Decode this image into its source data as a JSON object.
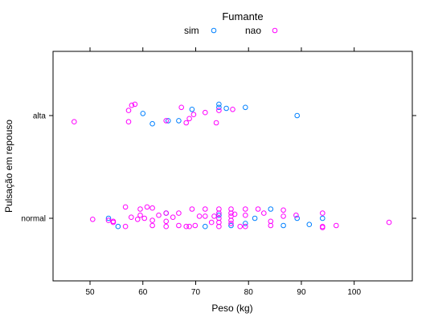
{
  "chart_data": {
    "type": "scatter",
    "xlabel": "Peso (kg)",
    "ylabel": "Pulsação em repouso",
    "xlim": [
      43,
      111
    ],
    "x_ticks": [
      50,
      60,
      70,
      80,
      90,
      100
    ],
    "categories": [
      "normal",
      "alta"
    ],
    "grid": false,
    "legend": {
      "title": "Fumante",
      "placement": "top",
      "entries": [
        "sim",
        "nao"
      ]
    },
    "series": [
      {
        "name": "sim",
        "color": "#0080ff",
        "points": [
          {
            "x": 60.0,
            "y": "alta",
            "j": 0.02
          },
          {
            "x": 61.8,
            "y": "alta",
            "j": -0.08
          },
          {
            "x": 64.8,
            "y": "alta",
            "j": -0.05
          },
          {
            "x": 66.8,
            "y": "alta",
            "j": -0.05
          },
          {
            "x": 69.3,
            "y": "alta",
            "j": 0.06
          },
          {
            "x": 74.4,
            "y": "alta",
            "j": 0.11
          },
          {
            "x": 74.4,
            "y": "alta",
            "j": 0.08
          },
          {
            "x": 75.8,
            "y": "alta",
            "j": 0.07
          },
          {
            "x": 79.4,
            "y": "alta",
            "j": 0.08
          },
          {
            "x": 89.2,
            "y": "alta",
            "j": 0.0
          },
          {
            "x": 53.5,
            "y": "normal",
            "j": 0.0
          },
          {
            "x": 55.3,
            "y": "normal",
            "j": -0.08
          },
          {
            "x": 64.4,
            "y": "normal",
            "j": 0.05
          },
          {
            "x": 71.8,
            "y": "normal",
            "j": -0.08
          },
          {
            "x": 74.4,
            "y": "normal",
            "j": 0.03
          },
          {
            "x": 76.7,
            "y": "normal",
            "j": -0.07
          },
          {
            "x": 79.4,
            "y": "normal",
            "j": -0.05
          },
          {
            "x": 81.2,
            "y": "normal",
            "j": 0.0
          },
          {
            "x": 84.2,
            "y": "normal",
            "j": 0.09
          },
          {
            "x": 86.6,
            "y": "normal",
            "j": -0.07
          },
          {
            "x": 89.2,
            "y": "normal",
            "j": 0.0
          },
          {
            "x": 91.5,
            "y": "normal",
            "j": -0.06
          },
          {
            "x": 94.0,
            "y": "normal",
            "j": 0.0
          }
        ]
      },
      {
        "name": "nao",
        "color": "#ff00ff",
        "points": [
          {
            "x": 47.0,
            "y": "alta",
            "j": -0.06
          },
          {
            "x": 57.3,
            "y": "alta",
            "j": -0.06
          },
          {
            "x": 57.3,
            "y": "alta",
            "j": 0.05
          },
          {
            "x": 57.9,
            "y": "alta",
            "j": 0.1
          },
          {
            "x": 58.5,
            "y": "alta",
            "j": 0.11
          },
          {
            "x": 64.4,
            "y": "alta",
            "j": -0.05
          },
          {
            "x": 67.3,
            "y": "alta",
            "j": 0.08
          },
          {
            "x": 68.2,
            "y": "alta",
            "j": -0.07
          },
          {
            "x": 68.8,
            "y": "alta",
            "j": -0.03
          },
          {
            "x": 69.6,
            "y": "alta",
            "j": 0.01
          },
          {
            "x": 71.8,
            "y": "alta",
            "j": 0.03
          },
          {
            "x": 73.9,
            "y": "alta",
            "j": -0.07
          },
          {
            "x": 74.4,
            "y": "alta",
            "j": 0.05
          },
          {
            "x": 77.0,
            "y": "alta",
            "j": 0.06
          },
          {
            "x": 50.5,
            "y": "normal",
            "j": -0.01
          },
          {
            "x": 53.5,
            "y": "normal",
            "j": -0.02
          },
          {
            "x": 54.4,
            "y": "normal",
            "j": -0.03
          },
          {
            "x": 54.4,
            "y": "normal",
            "j": -0.04
          },
          {
            "x": 56.7,
            "y": "normal",
            "j": -0.08
          },
          {
            "x": 56.7,
            "y": "normal",
            "j": 0.11
          },
          {
            "x": 57.8,
            "y": "normal",
            "j": 0.01
          },
          {
            "x": 59.0,
            "y": "normal",
            "j": -0.01
          },
          {
            "x": 59.5,
            "y": "normal",
            "j": 0.03
          },
          {
            "x": 59.5,
            "y": "normal",
            "j": 0.09
          },
          {
            "x": 60.3,
            "y": "normal",
            "j": 0.0
          },
          {
            "x": 60.8,
            "y": "normal",
            "j": 0.11
          },
          {
            "x": 61.8,
            "y": "normal",
            "j": 0.1
          },
          {
            "x": 61.8,
            "y": "normal",
            "j": -0.02
          },
          {
            "x": 61.8,
            "y": "normal",
            "j": -0.07
          },
          {
            "x": 63.0,
            "y": "normal",
            "j": 0.03
          },
          {
            "x": 64.4,
            "y": "normal",
            "j": 0.05
          },
          {
            "x": 64.4,
            "y": "normal",
            "j": -0.03
          },
          {
            "x": 64.4,
            "y": "normal",
            "j": -0.08
          },
          {
            "x": 65.7,
            "y": "normal",
            "j": 0.01
          },
          {
            "x": 66.8,
            "y": "normal",
            "j": 0.05
          },
          {
            "x": 66.8,
            "y": "normal",
            "j": -0.07
          },
          {
            "x": 68.2,
            "y": "normal",
            "j": -0.08
          },
          {
            "x": 68.8,
            "y": "normal",
            "j": -0.08
          },
          {
            "x": 69.3,
            "y": "normal",
            "j": 0.09
          },
          {
            "x": 69.9,
            "y": "normal",
            "j": -0.07
          },
          {
            "x": 70.7,
            "y": "normal",
            "j": 0.02
          },
          {
            "x": 71.8,
            "y": "normal",
            "j": 0.09
          },
          {
            "x": 71.8,
            "y": "normal",
            "j": 0.02
          },
          {
            "x": 73.0,
            "y": "normal",
            "j": -0.04
          },
          {
            "x": 73.5,
            "y": "normal",
            "j": 0.02
          },
          {
            "x": 74.4,
            "y": "normal",
            "j": 0.09
          },
          {
            "x": 74.4,
            "y": "normal",
            "j": 0.05
          },
          {
            "x": 74.4,
            "y": "normal",
            "j": 0.0
          },
          {
            "x": 74.4,
            "y": "normal",
            "j": -0.04
          },
          {
            "x": 74.4,
            "y": "normal",
            "j": -0.08
          },
          {
            "x": 76.7,
            "y": "normal",
            "j": 0.09
          },
          {
            "x": 76.7,
            "y": "normal",
            "j": 0.05
          },
          {
            "x": 76.7,
            "y": "normal",
            "j": 0.02
          },
          {
            "x": 76.7,
            "y": "normal",
            "j": -0.02
          },
          {
            "x": 76.7,
            "y": "normal",
            "j": -0.05
          },
          {
            "x": 77.4,
            "y": "normal",
            "j": 0.04
          },
          {
            "x": 78.4,
            "y": "normal",
            "j": -0.08
          },
          {
            "x": 79.4,
            "y": "normal",
            "j": 0.03
          },
          {
            "x": 79.4,
            "y": "normal",
            "j": 0.09
          },
          {
            "x": 79.4,
            "y": "normal",
            "j": -0.08
          },
          {
            "x": 81.8,
            "y": "normal",
            "j": 0.09
          },
          {
            "x": 82.9,
            "y": "normal",
            "j": 0.05
          },
          {
            "x": 84.2,
            "y": "normal",
            "j": -0.03
          },
          {
            "x": 84.2,
            "y": "normal",
            "j": -0.07
          },
          {
            "x": 86.6,
            "y": "normal",
            "j": 0.02
          },
          {
            "x": 86.6,
            "y": "normal",
            "j": 0.08
          },
          {
            "x": 89.0,
            "y": "normal",
            "j": 0.03
          },
          {
            "x": 94.0,
            "y": "normal",
            "j": 0.05
          },
          {
            "x": 94.0,
            "y": "normal",
            "j": -0.08
          },
          {
            "x": 94.0,
            "y": "normal",
            "j": -0.09
          },
          {
            "x": 96.6,
            "y": "normal",
            "j": -0.07
          },
          {
            "x": 106.6,
            "y": "normal",
            "j": -0.04
          }
        ]
      }
    ]
  }
}
